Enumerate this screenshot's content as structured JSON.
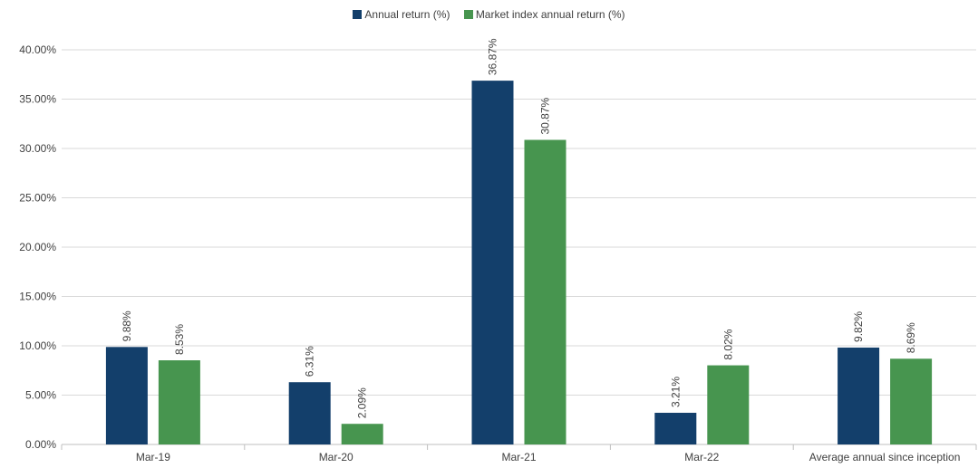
{
  "chart_data": {
    "type": "bar",
    "categories": [
      "Mar-19",
      "Mar-20",
      "Mar-21",
      "Mar-22",
      "Average annual since inception"
    ],
    "series": [
      {
        "name": "Annual return (%)",
        "color": "#133f6b",
        "values": [
          9.88,
          6.31,
          36.87,
          3.21,
          9.82
        ],
        "labels": [
          "9.88%",
          "6.31%",
          "36.87%",
          "3.21%",
          "9.82%"
        ]
      },
      {
        "name": "Market index annual return (%)",
        "color": "#47954f",
        "values": [
          8.53,
          2.09,
          30.87,
          8.02,
          8.69
        ],
        "labels": [
          "8.53%",
          "2.09%",
          "30.87%",
          "8.02%",
          "8.69%"
        ]
      }
    ],
    "yticks": [
      0,
      5,
      10,
      15,
      20,
      25,
      30,
      35,
      40
    ],
    "ytick_labels": [
      "0.00%",
      "5.00%",
      "10.00%",
      "15.00%",
      "20.00%",
      "25.00%",
      "30.00%",
      "35.00%",
      "40.00%"
    ],
    "ylim": [
      0,
      40
    ],
    "grid": true,
    "legend_position": "top-center",
    "title": "",
    "xlabel": "",
    "ylabel": ""
  }
}
